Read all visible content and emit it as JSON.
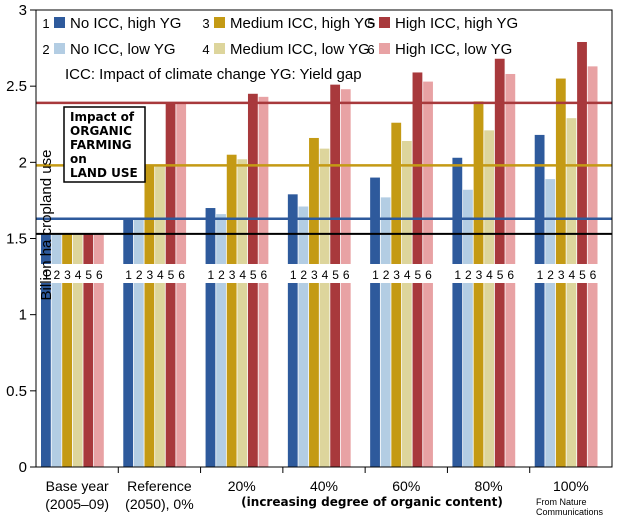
{
  "chart_data": {
    "type": "bar",
    "ylabel": "Billion ha cropland use",
    "ylim": [
      0,
      3
    ],
    "yticks": [
      "0",
      "0.5",
      "1",
      "1.5",
      "2",
      "2.5",
      "3"
    ],
    "grid": false,
    "legend_position": "top-left",
    "categories": [
      [
        "Base year",
        "(2005–09)"
      ],
      [
        "Reference",
        "(2050), 0%"
      ],
      [
        "20%"
      ],
      [
        "40%"
      ],
      [
        "60%"
      ],
      [
        "80%"
      ],
      [
        "100%"
      ]
    ],
    "x_caption": "(increasing degree of organic content)",
    "series": [
      {
        "name": "No ICC, high YG",
        "number": "1",
        "color": "#2e5a9c",
        "values": [
          1.53,
          1.63,
          1.7,
          1.79,
          1.9,
          2.03,
          2.18
        ]
      },
      {
        "name": "No ICC, low YG",
        "number": "2",
        "color": "#b3cde3",
        "values": [
          1.53,
          1.63,
          1.66,
          1.71,
          1.77,
          1.82,
          1.89
        ]
      },
      {
        "name": "Medium ICC, high YG",
        "number": "3",
        "color": "#c49a14",
        "values": [
          1.53,
          1.98,
          2.05,
          2.16,
          2.26,
          2.4,
          2.55
        ]
      },
      {
        "name": "Medium ICC, low YG",
        "number": "4",
        "color": "#ddd59c",
        "values": [
          1.53,
          1.98,
          2.02,
          2.09,
          2.14,
          2.21,
          2.29
        ]
      },
      {
        "name": "High ICC, high YG",
        "number": "5",
        "color": "#a8393c",
        "values": [
          1.53,
          2.39,
          2.45,
          2.51,
          2.59,
          2.68,
          2.79
        ]
      },
      {
        "name": "High ICC, low YG",
        "number": "6",
        "color": "#e8a2a4",
        "values": [
          1.53,
          2.39,
          2.43,
          2.48,
          2.53,
          2.58,
          2.63
        ]
      }
    ],
    "reference_lines": [
      {
        "value": 1.53,
        "color": "#000000"
      },
      {
        "value": 1.63,
        "color": "#2e5a9c"
      },
      {
        "value": 1.98,
        "color": "#c49a14"
      },
      {
        "value": 2.39,
        "color": "#a8393c"
      }
    ],
    "legend_note": "ICC: Impact of climate change   YG:  Yield gap",
    "annotation_lines": [
      "Impact of",
      "ORGANIC",
      "FARMING",
      "on",
      "LAND USE"
    ],
    "credit_lines": [
      "From Nature",
      "Communications"
    ]
  }
}
